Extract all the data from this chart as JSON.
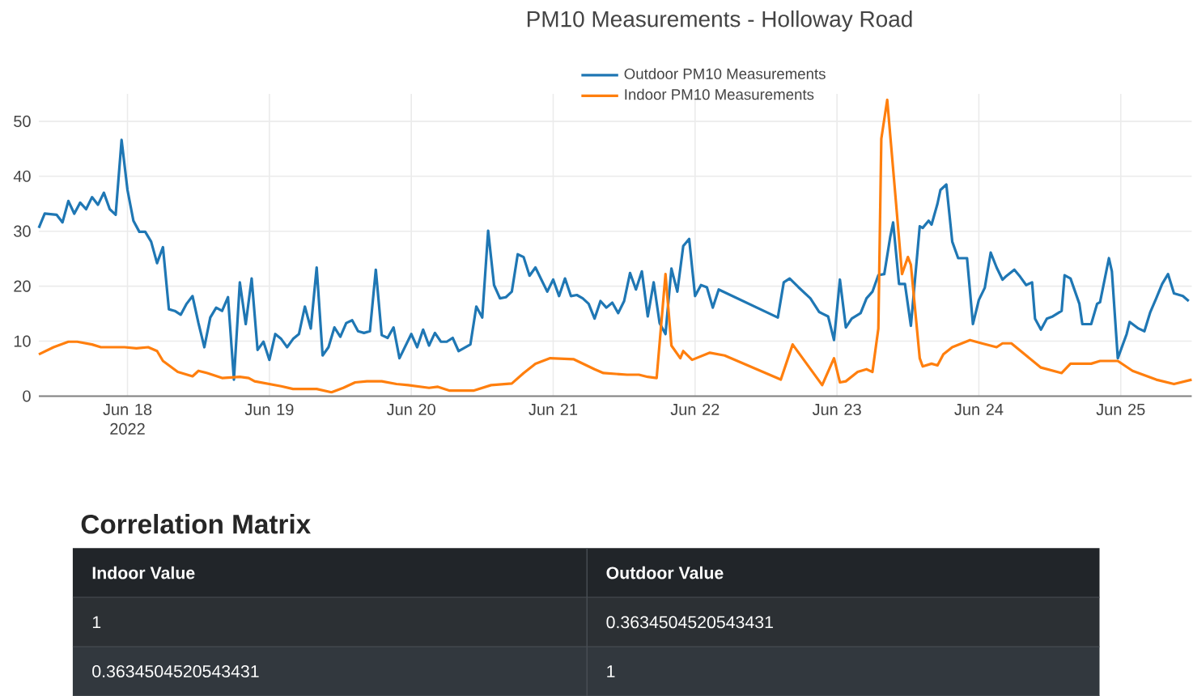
{
  "chart_data": {
    "type": "line",
    "title": "PM10 Measurements - Holloway Road",
    "xlim": [
      "2022-06-17T09:00",
      "2022-06-25T12:00"
    ],
    "xticks": [
      {
        "value": "2022-06-18",
        "label": "Jun 18 2022"
      },
      {
        "value": "2022-06-19",
        "label": "Jun 19"
      },
      {
        "value": "2022-06-20",
        "label": "Jun 20"
      },
      {
        "value": "2022-06-21",
        "label": "Jun 21"
      },
      {
        "value": "2022-06-22",
        "label": "Jun 22"
      },
      {
        "value": "2022-06-23",
        "label": "Jun 23"
      },
      {
        "value": "2022-06-24",
        "label": "Jun 24"
      },
      {
        "value": "2022-06-25",
        "label": "Jun 25"
      }
    ],
    "ylim": [
      0,
      55
    ],
    "yticks": [
      0,
      10,
      20,
      30,
      40,
      50
    ],
    "grid": true,
    "legend": "top",
    "marker": "none",
    "line_style": "solid",
    "series": [
      {
        "name": "Outdoor PM10 Measurements",
        "color": "#1f77b4",
        "x": [
          "2022-06-17T09:00",
          "2022-06-17T10:00",
          "2022-06-17T12:00",
          "2022-06-17T13:00",
          "2022-06-17T14:00",
          "2022-06-17T15:00",
          "2022-06-17T16:00",
          "2022-06-17T17:00",
          "2022-06-17T18:00",
          "2022-06-17T19:00",
          "2022-06-17T20:00",
          "2022-06-17T21:00",
          "2022-06-17T22:00",
          "2022-06-17T23:00",
          "2022-06-18T00:00",
          "2022-06-18T01:00",
          "2022-06-18T02:00",
          "2022-06-18T03:00",
          "2022-06-18T04:00",
          "2022-06-18T05:00",
          "2022-06-18T06:00",
          "2022-06-18T07:00",
          "2022-06-18T08:00",
          "2022-06-18T09:00",
          "2022-06-18T10:00",
          "2022-06-18T11:00",
          "2022-06-18T12:00",
          "2022-06-18T13:00",
          "2022-06-18T14:00",
          "2022-06-18T15:00",
          "2022-06-18T16:00",
          "2022-06-18T17:00",
          "2022-06-18T18:00",
          "2022-06-18T19:00",
          "2022-06-18T20:00",
          "2022-06-18T21:00",
          "2022-06-18T22:00",
          "2022-06-18T23:00",
          "2022-06-19T00:00",
          "2022-06-19T01:00",
          "2022-06-19T02:00",
          "2022-06-19T03:00",
          "2022-06-19T04:00",
          "2022-06-19T05:00",
          "2022-06-19T06:00",
          "2022-06-19T07:00",
          "2022-06-19T08:00",
          "2022-06-19T09:00",
          "2022-06-19T10:00",
          "2022-06-19T11:00",
          "2022-06-19T12:00",
          "2022-06-19T13:00",
          "2022-06-19T14:00",
          "2022-06-19T15:00",
          "2022-06-19T16:00",
          "2022-06-19T17:00",
          "2022-06-19T18:00",
          "2022-06-19T19:00",
          "2022-06-19T20:00",
          "2022-06-19T21:00",
          "2022-06-19T22:00",
          "2022-06-20T00:00",
          "2022-06-20T01:00",
          "2022-06-20T02:00",
          "2022-06-20T03:00",
          "2022-06-20T04:00",
          "2022-06-20T05:00",
          "2022-06-20T06:00",
          "2022-06-20T07:00",
          "2022-06-20T08:00",
          "2022-06-20T10:00",
          "2022-06-20T11:00",
          "2022-06-20T12:00",
          "2022-06-20T13:00",
          "2022-06-20T14:00",
          "2022-06-20T15:00",
          "2022-06-20T16:00",
          "2022-06-20T17:00",
          "2022-06-20T18:00",
          "2022-06-20T19:00",
          "2022-06-20T20:00",
          "2022-06-20T21:00",
          "2022-06-20T22:00",
          "2022-06-20T23:00",
          "2022-06-21T00:00",
          "2022-06-21T01:00",
          "2022-06-21T02:00",
          "2022-06-21T03:00",
          "2022-06-21T04:00",
          "2022-06-21T05:00",
          "2022-06-21T06:00",
          "2022-06-21T07:00",
          "2022-06-21T08:00",
          "2022-06-21T09:00",
          "2022-06-21T10:00",
          "2022-06-21T11:00",
          "2022-06-21T12:00",
          "2022-06-21T13:00",
          "2022-06-21T14:00",
          "2022-06-21T15:00",
          "2022-06-21T16:00",
          "2022-06-21T17:00",
          "2022-06-21T18:00",
          "2022-06-21T19:00",
          "2022-06-21T20:00",
          "2022-06-21T21:00",
          "2022-06-21T22:00",
          "2022-06-21T23:00",
          "2022-06-22T00:00",
          "2022-06-22T01:00",
          "2022-06-22T02:00",
          "2022-06-22T03:00",
          "2022-06-22T04:00",
          "2022-06-22T14:00",
          "2022-06-22T15:00",
          "2022-06-22T16:00",
          "2022-06-22T17:30",
          "2022-06-22T19:30",
          "2022-06-22T21:00",
          "2022-06-22T22:30",
          "2022-06-22T23:30",
          "2022-06-23T00:30",
          "2022-06-23T01:30",
          "2022-06-23T02:30",
          "2022-06-23T04:00",
          "2022-06-23T05:00",
          "2022-06-23T06:00",
          "2022-06-23T07:00",
          "2022-06-23T08:00",
          "2022-06-23T09:00",
          "2022-06-23T09:30",
          "2022-06-23T10:30",
          "2022-06-23T11:30",
          "2022-06-23T12:30",
          "2022-06-23T14:00",
          "2022-06-23T14:30",
          "2022-06-23T15:30",
          "2022-06-23T16:00",
          "2022-06-23T17:00",
          "2022-06-23T17:30",
          "2022-06-23T18:30",
          "2022-06-23T19:30",
          "2022-06-23T20:30",
          "2022-06-23T22:00",
          "2022-06-23T23:00",
          "2022-06-24T00:00",
          "2022-06-24T01:00",
          "2022-06-24T02:00",
          "2022-06-24T03:00",
          "2022-06-24T04:00",
          "2022-06-24T04:30",
          "2022-06-24T06:00",
          "2022-06-24T07:00",
          "2022-06-24T08:00",
          "2022-06-24T09:00",
          "2022-06-24T09:30",
          "2022-06-24T10:30",
          "2022-06-24T11:30",
          "2022-06-24T12:30",
          "2022-06-24T14:00",
          "2022-06-24T14:30",
          "2022-06-24T15:30",
          "2022-06-24T17:00",
          "2022-06-24T17:30",
          "2022-06-24T19:00",
          "2022-06-24T20:00",
          "2022-06-24T20:30",
          "2022-06-24T22:00",
          "2022-06-24T22:30",
          "2022-06-24T23:30",
          "2022-06-25T01:00",
          "2022-06-25T01:30",
          "2022-06-25T03:00",
          "2022-06-25T04:00",
          "2022-06-25T05:00",
          "2022-06-25T06:00",
          "2022-06-25T07:00",
          "2022-06-25T08:00",
          "2022-06-25T09:00",
          "2022-06-25T10:30",
          "2022-06-25T11:30"
        ],
        "values": [
          30.6,
          33.2,
          33,
          31.6,
          35.5,
          33.2,
          35.2,
          34,
          36.2,
          34.8,
          37,
          34,
          33,
          46.6,
          37.5,
          31.9,
          29.9,
          29.9,
          28.1,
          24.2,
          27.1,
          15.8,
          15.5,
          14.8,
          16.8,
          18.2,
          13.3,
          8.9,
          14.3,
          16.1,
          15.5,
          18,
          3,
          20.7,
          13.1,
          21.4,
          8.4,
          9.9,
          6.6,
          11.3,
          10.4,
          8.9,
          10.4,
          11.3,
          16.3,
          12.3,
          23.4,
          7.4,
          8.9,
          12.5,
          10.8,
          13.3,
          13.8,
          11.8,
          11.5,
          11.8,
          23,
          11.1,
          10.6,
          12.5,
          6.9,
          11.3,
          8.9,
          12.1,
          9.2,
          11.5,
          9.9,
          9.9,
          10.6,
          8.2,
          9.4,
          16.3,
          14.3,
          30.1,
          20.2,
          17.8,
          18,
          19,
          25.8,
          25.3,
          21.9,
          23.4,
          21.2,
          19,
          21.2,
          18.2,
          21.4,
          18.2,
          18.4,
          17.8,
          16.8,
          14.1,
          17.3,
          16.1,
          17,
          15.1,
          17.3,
          22.4,
          19.4,
          22.7,
          14.5,
          20.7,
          13.3,
          11.3,
          23.2,
          19,
          27.3,
          28.6,
          18.2,
          20.2,
          19.8,
          16.1,
          19.4,
          14.3,
          20.7,
          21.4,
          19.8,
          17.8,
          15.3,
          14.5,
          10.2,
          21.2,
          12.5,
          14.1,
          15.1,
          17.8,
          19,
          22,
          22.2,
          28.9,
          31.6,
          20.4,
          20.4,
          12.8,
          30.9,
          30.6,
          31.9,
          31.2,
          35,
          37.5,
          38.5,
          28.1,
          25.1,
          25.1,
          13.1,
          17.5,
          19.7,
          26.1,
          23.4,
          21.2,
          21.7,
          23,
          21.7,
          20.2,
          20.7,
          14.1,
          12.1,
          14.1,
          14.5,
          15.5,
          22,
          21.4,
          16.8,
          13.1,
          13.1,
          16.8,
          17.1,
          25.1,
          22.7,
          6.9,
          11.3,
          13.5,
          12.3,
          11.8,
          15.3,
          17.8,
          20.4,
          22.2,
          18.7,
          18.2,
          17.3
        ]
      },
      {
        "name": "Indoor PM10 Measurements",
        "color": "#ff7f0e",
        "x": [
          "2022-06-17T09:00",
          "2022-06-17T11:30",
          "2022-06-17T14:00",
          "2022-06-17T15:30",
          "2022-06-17T18:00",
          "2022-06-17T19:30",
          "2022-06-17T23:30",
          "2022-06-18T01:30",
          "2022-06-18T03:30",
          "2022-06-18T05:00",
          "2022-06-18T06:00",
          "2022-06-18T08:30",
          "2022-06-18T11:00",
          "2022-06-18T12:00",
          "2022-06-18T13:30",
          "2022-06-18T16:00",
          "2022-06-18T19:00",
          "2022-06-18T20:30",
          "2022-06-18T21:30",
          "2022-06-19T02:00",
          "2022-06-19T04:00",
          "2022-06-19T06:30",
          "2022-06-19T08:00",
          "2022-06-19T10:30",
          "2022-06-19T12:30",
          "2022-06-19T14:30",
          "2022-06-19T16:30",
          "2022-06-19T19:00",
          "2022-06-19T21:30",
          "2022-06-19T23:30",
          "2022-06-20T03:00",
          "2022-06-20T04:30",
          "2022-06-20T06:30",
          "2022-06-20T10:30",
          "2022-06-20T13:30",
          "2022-06-20T17:00",
          "2022-06-20T19:00",
          "2022-06-20T21:00",
          "2022-06-20T23:30",
          "2022-06-21T03:30",
          "2022-06-21T07:00",
          "2022-06-21T08:30",
          "2022-06-21T12:30",
          "2022-06-21T14:30",
          "2022-06-21T16:00",
          "2022-06-21T17:30",
          "2022-06-21T19:00",
          "2022-06-21T20:00",
          "2022-06-21T21:30",
          "2022-06-21T22:00",
          "2022-06-21T23:30",
          "2022-06-22T02:30",
          "2022-06-22T05:00",
          "2022-06-22T14:30",
          "2022-06-22T16:30",
          "2022-06-22T21:30",
          "2022-06-22T23:30",
          "2022-06-23T00:30",
          "2022-06-23T01:30",
          "2022-06-23T03:30",
          "2022-06-23T05:00",
          "2022-06-23T06:00",
          "2022-06-23T07:00",
          "2022-06-23T07:30",
          "2022-06-23T08:30",
          "2022-06-23T10:00",
          "2022-06-23T11:00",
          "2022-06-23T12:00",
          "2022-06-23T12:30",
          "2022-06-23T14:00",
          "2022-06-23T14:30",
          "2022-06-23T16:00",
          "2022-06-23T17:00",
          "2022-06-23T18:00",
          "2022-06-23T19:30",
          "2022-06-23T22:30",
          "2022-06-24T00:30",
          "2022-06-24T03:00",
          "2022-06-24T04:00",
          "2022-06-24T05:30",
          "2022-06-24T08:00",
          "2022-06-24T10:30",
          "2022-06-24T14:00",
          "2022-06-24T15:30",
          "2022-06-24T19:00",
          "2022-06-24T20:30",
          "2022-06-24T23:30",
          "2022-06-25T02:00",
          "2022-06-25T06:00",
          "2022-06-25T09:00",
          "2022-06-25T12:00"
        ],
        "values": [
          7.6,
          8.9,
          9.9,
          9.9,
          9.4,
          8.9,
          8.9,
          8.7,
          8.9,
          8.2,
          6.4,
          4.4,
          3.6,
          4.6,
          4.2,
          3.3,
          3.5,
          3.3,
          2.7,
          1.8,
          1.3,
          1.3,
          1.3,
          0.7,
          1.5,
          2.5,
          2.7,
          2.7,
          2.2,
          2,
          1.5,
          1.7,
          1,
          1,
          2,
          2.3,
          4.2,
          5.9,
          6.9,
          6.7,
          4.9,
          4.2,
          3.9,
          3.9,
          3.5,
          3.3,
          22.2,
          9.2,
          6.9,
          8.2,
          6.6,
          7.9,
          7.4,
          3,
          9.4,
          2,
          6.9,
          2.5,
          2.7,
          4.4,
          4.9,
          4.4,
          12.3,
          46.8,
          53.9,
          35,
          22.2,
          25.3,
          23.9,
          6.9,
          5.4,
          5.9,
          5.6,
          7.6,
          8.9,
          10.2,
          9.6,
          8.9,
          9.6,
          9.6,
          7.4,
          5.2,
          4.2,
          5.9,
          5.9,
          6.4,
          6.4,
          4.6,
          3,
          2.2,
          3
        ]
      }
    ],
    "annotations": [
      "Correlation Matrix",
      "Indoor Value",
      "Outdoor Value",
      "1",
      "0.3634504520543431",
      "0.3634504520543431",
      "1"
    ]
  }
}
